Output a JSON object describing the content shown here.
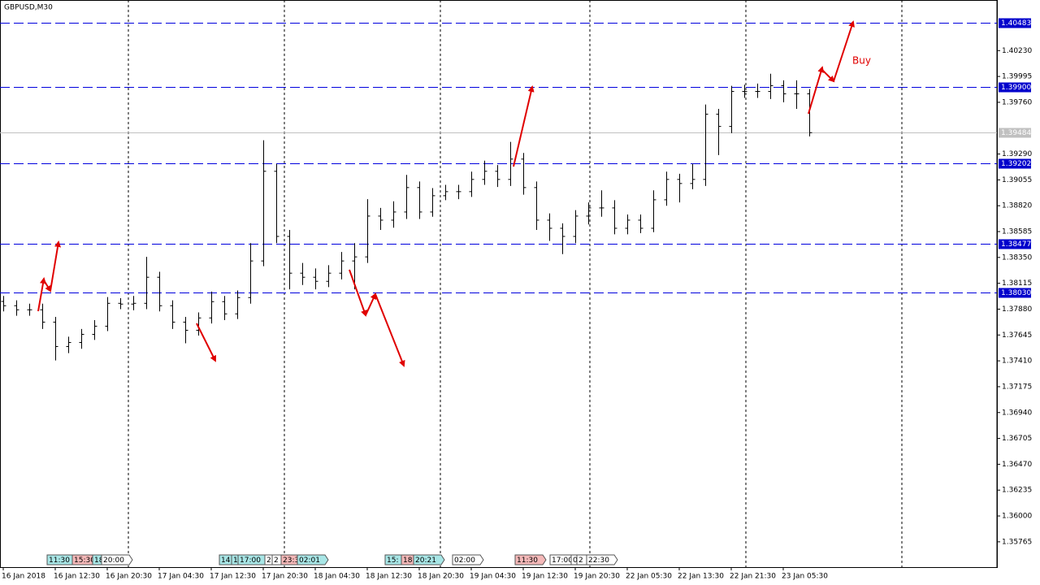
{
  "chart_data": {
    "type": "ohlc",
    "title": "GBPUSD,M30",
    "color": "#000000",
    "categories": [
      "16 Jan 2018",
      null,
      null,
      null,
      "16 Jan 12:30",
      null,
      null,
      null,
      "16 Jan 20:30",
      null,
      null,
      null,
      "17 Jan 04:30",
      null,
      null,
      null,
      "17 Jan 12:30",
      null,
      null,
      null,
      "17 Jan 20:30",
      null,
      null,
      null,
      "18 Jan 04:30",
      null,
      null,
      null,
      "18 Jan 12:30",
      null,
      null,
      null,
      "18 Jan 20:30",
      null,
      null,
      null,
      "19 Jan 04:30",
      null,
      null,
      null,
      "19 Jan 12:30",
      null,
      null,
      null,
      "19 Jan 20:30",
      null,
      null,
      null,
      "22 Jan 05:30",
      null,
      null,
      null,
      "22 Jan 13:30",
      null,
      null,
      null,
      "22 Jan 21:30",
      null,
      null,
      null,
      "23 Jan 05:30",
      null,
      null
    ],
    "open": [
      1.3795,
      1.37911,
      1.37874,
      1.37874,
      1.37762,
      1.3754,
      1.37577,
      1.37651,
      1.37725,
      1.37933,
      1.37926,
      1.37933,
      1.3817,
      1.37911,
      1.37762,
      1.37688,
      1.378,
      1.37948,
      1.37837,
      1.37985,
      1.38318,
      1.39133,
      1.38541,
      1.38207,
      1.3817,
      1.38133,
      1.38207,
      1.38318,
      1.38355,
      1.38726,
      1.38689,
      1.38763,
      1.38985,
      1.38763,
      1.38911,
      1.38948,
      1.38948,
      1.39059,
      1.39133,
      1.39059,
      1.39244,
      1.38985,
      1.38689,
      1.38615,
      1.38541,
      1.38726,
      1.388,
      1.388,
      1.38615,
      1.38689,
      1.38615,
      1.38874,
      1.39059,
      1.39022,
      1.39059,
      1.39652,
      1.39541,
      1.39859,
      1.39859,
      1.39859,
      1.39911,
      1.39837,
      1.39837
    ],
    "high": [
      1.38,
      1.3796,
      1.3793,
      1.3793,
      1.3781,
      1.3763,
      1.377,
      1.3778,
      1.3799,
      1.3798,
      1.38,
      1.38355,
      1.3822,
      1.3796,
      1.3781,
      1.3785,
      1.3804,
      1.38,
      1.3805,
      1.3848,
      1.39415,
      1.392,
      1.386,
      1.383,
      1.3825,
      1.3828,
      1.384,
      1.3848,
      1.3888,
      1.388,
      1.3886,
      1.391,
      1.3904,
      1.3898,
      1.3901,
      1.3901,
      1.3913,
      1.3923,
      1.3919,
      1.394,
      1.393,
      1.3904,
      1.3875,
      1.3866,
      1.3878,
      1.3885,
      1.3896,
      1.3887,
      1.3874,
      1.3874,
      1.3896,
      1.3913,
      1.3911,
      1.392,
      1.3974,
      1.397,
      1.3991,
      1.3992,
      1.3993,
      1.4002,
      1.3996,
      1.3996,
      1.3988
    ],
    "low": [
      1.3786,
      1.3782,
      1.3782,
      1.377,
      1.37414,
      1.3748,
      1.3752,
      1.376,
      1.3768,
      1.3788,
      1.3787,
      1.3788,
      1.3786,
      1.377,
      1.3757,
      1.3764,
      1.3775,
      1.3778,
      1.3779,
      1.3793,
      1.3827,
      1.3848,
      1.3806,
      1.381,
      1.3806,
      1.3808,
      1.3815,
      1.3806,
      1.383,
      1.386,
      1.3862,
      1.387,
      1.387,
      1.3872,
      1.3887,
      1.3888,
      1.389,
      1.3901,
      1.3899,
      1.39,
      1.3892,
      1.386,
      1.385,
      1.3838,
      1.3848,
      1.3865,
      1.3872,
      1.3856,
      1.3856,
      1.3857,
      1.3858,
      1.3882,
      1.3885,
      1.3897,
      1.39,
      1.3928,
      1.3948,
      1.398,
      1.398,
      1.3979,
      1.3976,
      1.397,
      1.3945
    ],
    "close": [
      1.37911,
      1.37874,
      1.37874,
      1.37762,
      1.3754,
      1.37577,
      1.37651,
      1.37725,
      1.37933,
      1.37926,
      1.37933,
      1.3817,
      1.37911,
      1.37762,
      1.37688,
      1.378,
      1.37948,
      1.37837,
      1.37985,
      1.38318,
      1.39133,
      1.38541,
      1.38207,
      1.3817,
      1.38133,
      1.38207,
      1.38318,
      1.38355,
      1.38726,
      1.38689,
      1.38763,
      1.38985,
      1.38763,
      1.38911,
      1.38948,
      1.38948,
      1.39059,
      1.39133,
      1.39059,
      1.39244,
      1.38985,
      1.38689,
      1.38615,
      1.38541,
      1.38726,
      1.388,
      1.388,
      1.38615,
      1.38689,
      1.38615,
      1.38874,
      1.39059,
      1.39022,
      1.39059,
      1.39652,
      1.39541,
      1.39859,
      1.39859,
      1.39859,
      1.39911,
      1.39837,
      1.39837,
      1.39484
    ],
    "ylim": [
      1.35535,
      1.4069
    ],
    "yticks": [
      {
        "value": 1.4023,
        "label": "1.40230"
      },
      1.39995,
      {
        "value": 1.3976,
        "label": "1.39760"
      },
      {
        "value": 1.3929,
        "label": "1.39290"
      },
      1.39055,
      {
        "value": 1.3882,
        "label": "1.38820"
      },
      1.38585,
      {
        "value": 1.3835,
        "label": "1.38350"
      },
      1.38115,
      {
        "value": 1.3788,
        "label": "1.37880"
      },
      1.37645,
      {
        "value": 1.3741,
        "label": "1.37410"
      },
      1.37175,
      {
        "value": 1.3694,
        "label": "1.36940"
      },
      1.36705,
      {
        "value": 1.3647,
        "label": "1.36470"
      },
      1.36235,
      {
        "value": 1.36,
        "label": "1.36000"
      },
      1.35765
    ],
    "levels": [
      1.40483,
      {
        "value": 1.399,
        "label": "1.39900"
      },
      1.39202,
      1.38477,
      {
        "value": 1.3803,
        "label": "1.38030"
      }
    ],
    "current_price": 1.39484,
    "annotation": "Buy",
    "events": [
      "11:30",
      "15:30",
      "18",
      "20:00",
      "14",
      "1",
      "17:00",
      "2",
      "2",
      "23:3",
      "02:01",
      "15:",
      "18:",
      "20:21",
      "02:00",
      "11:30",
      "17:00",
      "0",
      "2",
      "22:30"
    ]
  }
}
